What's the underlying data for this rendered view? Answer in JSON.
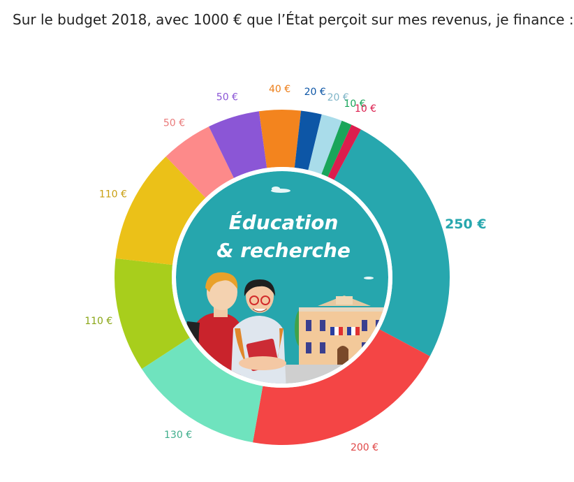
{
  "heading": "Sur le budget 2018, avec 1000 € que l’État perçoit sur mes revenus, je finance :",
  "center": {
    "line1": "Éducation",
    "line2": "& recherche",
    "bg_color": "#26a6ad"
  },
  "chart_data": {
    "type": "pie",
    "variant": "donut",
    "total": 1000,
    "unit": "€",
    "start": "top, clockwise",
    "slices": [
      {
        "label": "250 €",
        "value": 250,
        "color": "#27a7ae",
        "label_color": "#27a7ae",
        "active": true
      },
      {
        "label": "200 €",
        "value": 200,
        "color": "#f44545",
        "label_color": "#e04848"
      },
      {
        "label": "130 €",
        "value": 130,
        "color": "#6fe3be",
        "label_color": "#3fae8c"
      },
      {
        "label": "110 €",
        "value": 110,
        "color": "#a8ce1c",
        "label_color": "#8aa616"
      },
      {
        "label": "110 €",
        "value": 110,
        "color": "#ebc118",
        "label_color": "#c99f12"
      },
      {
        "label": "50 €",
        "value": 50,
        "color": "#fd8a8a",
        "label_color": "#ea7b7b"
      },
      {
        "label": "50 €",
        "value": 50,
        "color": "#8b56d6",
        "label_color": "#8b56d6"
      },
      {
        "label": "40 €",
        "value": 40,
        "color": "#f3841e",
        "label_color": "#ec7d18"
      },
      {
        "label": "20 €",
        "value": 20,
        "color": "#0d56a6",
        "label_color": "#0d56a6"
      },
      {
        "label": "20 €",
        "value": 20,
        "color": "#a9dcea",
        "label_color": "#7fb5c8"
      },
      {
        "label": "10 €",
        "value": 10,
        "color": "#19a55a",
        "label_color": "#19a55a"
      },
      {
        "label": "10 €",
        "value": 10,
        "color": "#dc1d4d",
        "label_color": "#dc1d4d"
      }
    ]
  }
}
